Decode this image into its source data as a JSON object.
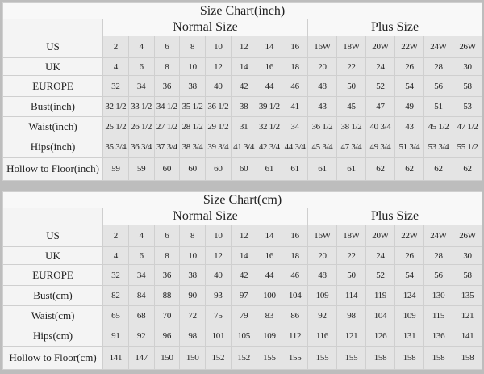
{
  "charts": [
    {
      "title": "Size Chart(inch)",
      "normal_label": "Normal Size",
      "plus_label": "Plus Size",
      "rows": [
        {
          "label": "US",
          "normal": [
            "2",
            "4",
            "6",
            "8",
            "10",
            "12",
            "14",
            "16"
          ],
          "plus": [
            "16W",
            "18W",
            "20W",
            "22W",
            "24W",
            "26W"
          ]
        },
        {
          "label": "UK",
          "normal": [
            "4",
            "6",
            "8",
            "10",
            "12",
            "14",
            "16",
            "18"
          ],
          "plus": [
            "20",
            "22",
            "24",
            "26",
            "28",
            "30"
          ]
        },
        {
          "label": "EUROPE",
          "normal": [
            "32",
            "34",
            "36",
            "38",
            "40",
            "42",
            "44",
            "46"
          ],
          "plus": [
            "48",
            "50",
            "52",
            "54",
            "56",
            "58"
          ]
        },
        {
          "label": "Bust(inch)",
          "normal": [
            "32 1/2",
            "33 1/2",
            "34 1/2",
            "35 1/2",
            "36 1/2",
            "38",
            "39 1/2",
            "41"
          ],
          "plus": [
            "43",
            "45",
            "47",
            "49",
            "51",
            "53"
          ]
        },
        {
          "label": "Waist(inch)",
          "normal": [
            "25 1/2",
            "26 1/2",
            "27 1/2",
            "28 1/2",
            "29 1/2",
            "31",
            "32 1/2",
            "34"
          ],
          "plus": [
            "36 1/2",
            "38 1/2",
            "40 3/4",
            "43",
            "45 1/2",
            "47 1/2"
          ]
        },
        {
          "label": "Hips(inch)",
          "normal": [
            "35 3/4",
            "36 3/4",
            "37 3/4",
            "38 3/4",
            "39 3/4",
            "41 3/4",
            "42 3/4",
            "44 3/4"
          ],
          "plus": [
            "45 3/4",
            "47 3/4",
            "49 3/4",
            "51 3/4",
            "53 3/4",
            "55 1/2"
          ]
        },
        {
          "label": "Hollow to Floor(inch)",
          "normal": [
            "59",
            "59",
            "60",
            "60",
            "60",
            "60",
            "61",
            "61"
          ],
          "plus": [
            "61",
            "61",
            "62",
            "62",
            "62",
            "62"
          ]
        }
      ]
    },
    {
      "title": "Size Chart(cm)",
      "normal_label": "Normal Size",
      "plus_label": "Plus Size",
      "rows": [
        {
          "label": "US",
          "normal": [
            "2",
            "4",
            "6",
            "8",
            "10",
            "12",
            "14",
            "16"
          ],
          "plus": [
            "16W",
            "18W",
            "20W",
            "22W",
            "24W",
            "26W"
          ]
        },
        {
          "label": "UK",
          "normal": [
            "4",
            "6",
            "8",
            "10",
            "12",
            "14",
            "16",
            "18"
          ],
          "plus": [
            "20",
            "22",
            "24",
            "26",
            "28",
            "30"
          ]
        },
        {
          "label": "EUROPE",
          "normal": [
            "32",
            "34",
            "36",
            "38",
            "40",
            "42",
            "44",
            "46"
          ],
          "plus": [
            "48",
            "50",
            "52",
            "54",
            "56",
            "58"
          ]
        },
        {
          "label": "Bust(cm)",
          "normal": [
            "82",
            "84",
            "88",
            "90",
            "93",
            "97",
            "100",
            "104"
          ],
          "plus": [
            "109",
            "114",
            "119",
            "124",
            "130",
            "135"
          ]
        },
        {
          "label": "Waist(cm)",
          "normal": [
            "65",
            "68",
            "70",
            "72",
            "75",
            "79",
            "83",
            "86"
          ],
          "plus": [
            "92",
            "98",
            "104",
            "109",
            "115",
            "121"
          ]
        },
        {
          "label": "Hips(cm)",
          "normal": [
            "91",
            "92",
            "96",
            "98",
            "101",
            "105",
            "109",
            "112"
          ],
          "plus": [
            "116",
            "121",
            "126",
            "131",
            "136",
            "141"
          ]
        },
        {
          "label": "Hollow to Floor(cm)",
          "normal": [
            "141",
            "147",
            "150",
            "150",
            "152",
            "152",
            "155",
            "155"
          ],
          "plus": [
            "155",
            "155",
            "158",
            "158",
            "158",
            "158"
          ]
        }
      ]
    }
  ]
}
